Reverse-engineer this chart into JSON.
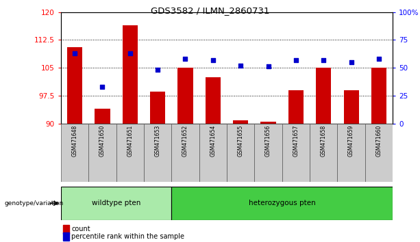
{
  "title": "GDS3582 / ILMN_2860731",
  "samples": [
    "GSM471648",
    "GSM471650",
    "GSM471651",
    "GSM471653",
    "GSM471652",
    "GSM471654",
    "GSM471655",
    "GSM471656",
    "GSM471657",
    "GSM471658",
    "GSM471659",
    "GSM471660"
  ],
  "counts": [
    110.5,
    94.0,
    116.5,
    98.5,
    105.0,
    102.5,
    90.8,
    90.5,
    99.0,
    105.0,
    99.0,
    105.0
  ],
  "percentiles": [
    63,
    33,
    63,
    48,
    58,
    57,
    52,
    51,
    57,
    57,
    55,
    58
  ],
  "ylim_left": [
    90,
    120
  ],
  "ylim_right": [
    0,
    100
  ],
  "yticks_left": [
    90,
    97.5,
    105,
    112.5,
    120
  ],
  "ytick_labels_left": [
    "90",
    "97.5",
    "105",
    "112.5",
    "120"
  ],
  "yticks_right": [
    0,
    25,
    50,
    75,
    100
  ],
  "ytick_labels_right": [
    "0",
    "25",
    "50",
    "75",
    "100%"
  ],
  "bar_color": "#cc0000",
  "scatter_color": "#0000cc",
  "wt_count": 4,
  "het_count": 8,
  "wildtype_label": "wildtype pten",
  "heterozygous_label": "heterozygous pten",
  "genotype_label": "genotype/variation",
  "legend_count": "count",
  "legend_percentile": "percentile rank within the sample",
  "wildtype_color": "#aaeaaa",
  "heterozygous_color": "#44cc44",
  "grid_color": "#000000",
  "bar_bottom": 90,
  "box_color": "#cccccc"
}
